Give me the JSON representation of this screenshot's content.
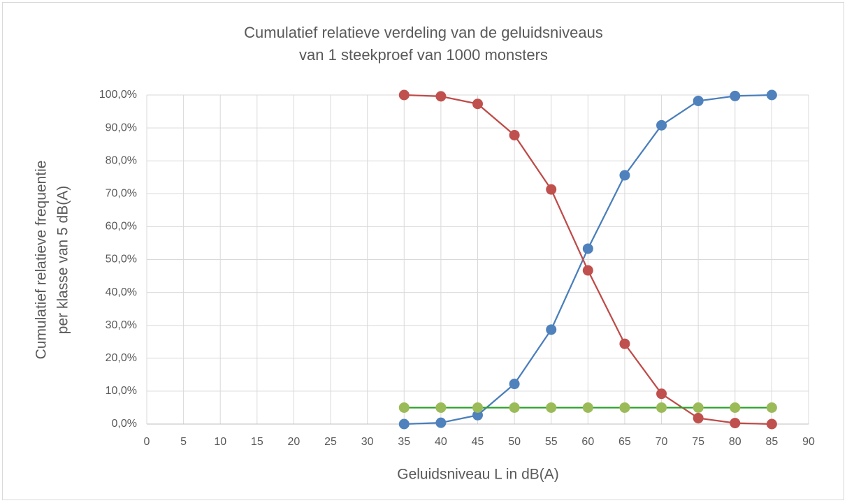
{
  "chart_data": {
    "type": "line",
    "title": [
      "Cumulatief relatieve verdeling van de geluidsniveaus",
      "van 1 steekproef van 1000 monsters"
    ],
    "x_label": "Geluidsniveau L in dB(A)",
    "y_label": [
      "Cumulatief relatieve frequentie",
      "per klasse van 5 dB(A)"
    ],
    "x": [
      35,
      40,
      45,
      50,
      55,
      60,
      65,
      70,
      75,
      80,
      85
    ],
    "series": [
      {
        "color": "#4a7ebb",
        "marker_color": "#4f81bd",
        "values": [
          0,
          0.4,
          2.7,
          12.2,
          28.7,
          53.3,
          75.6,
          90.8,
          98.2,
          99.7,
          100
        ]
      },
      {
        "color": "#be4b48",
        "marker_color": "#c0504d",
        "values": [
          100,
          99.6,
          97.3,
          87.8,
          71.3,
          46.7,
          24.4,
          9.2,
          1.8,
          0.3,
          0
        ]
      },
      {
        "color": "#2ca02c",
        "marker_color": "#9bbb59",
        "values": [
          5,
          5,
          5,
          5,
          5,
          5,
          5,
          5,
          5,
          5,
          5
        ]
      }
    ],
    "xlim": [
      0,
      90
    ],
    "xticks": [
      0,
      5,
      10,
      15,
      20,
      25,
      30,
      35,
      40,
      45,
      50,
      55,
      60,
      65,
      70,
      75,
      80,
      85,
      90
    ],
    "ylim": [
      0,
      100
    ],
    "yticks": [
      {
        "value": 0,
        "label": "0,0%"
      },
      {
        "value": 10,
        "label": "10,0%"
      },
      {
        "value": 20,
        "label": "20,0%"
      },
      {
        "value": 30,
        "label": "30,0%"
      },
      {
        "value": 40,
        "label": "40,0%"
      },
      {
        "value": 50,
        "label": "50,0%"
      },
      {
        "value": 60,
        "label": "60,0%"
      },
      {
        "value": 70,
        "label": "70,0%"
      },
      {
        "value": 80,
        "label": "80,0%"
      },
      {
        "value": 90,
        "label": "90,0%"
      },
      {
        "value": 100,
        "label": "100,0%"
      }
    ],
    "grid": true
  }
}
